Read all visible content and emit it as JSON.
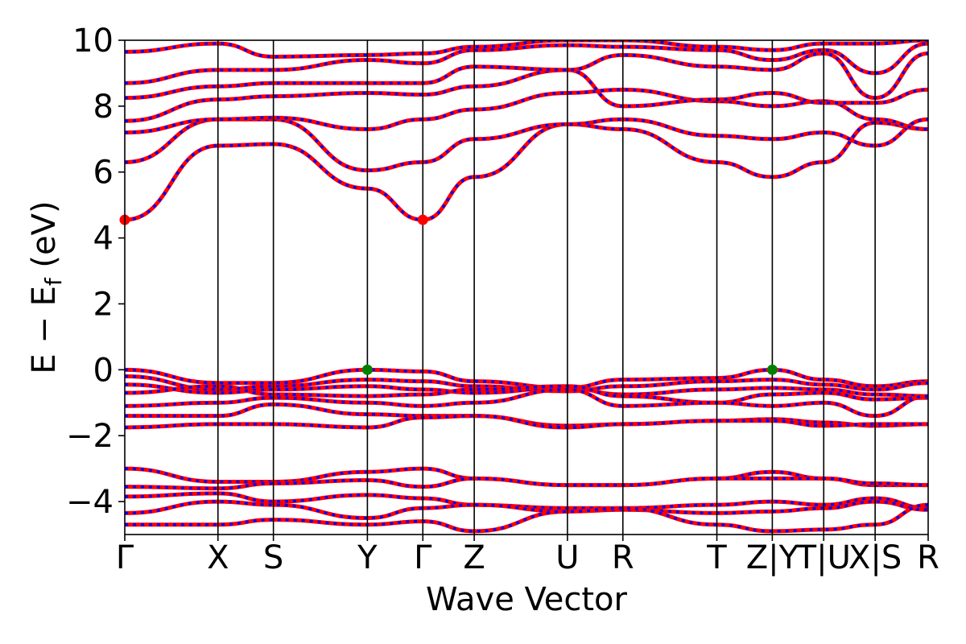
{
  "chart_data": {
    "type": "line",
    "xlabel": "Wave Vector",
    "ylabel": "E − E",
    "ylabel_sub": "f",
    "ylabel_unit": " (eV)",
    "ylim": [
      -5,
      10
    ],
    "yticks": [
      -4,
      -2,
      0,
      2,
      4,
      6,
      8,
      10
    ],
    "ytick_labels": [
      "−4",
      "−2",
      "0",
      "2",
      "4",
      "6",
      "8",
      "10"
    ],
    "xlim": [
      0,
      1
    ],
    "kpoints": [
      {
        "label": "Γ",
        "x": 0.0
      },
      {
        "label": "X",
        "x": 0.116
      },
      {
        "label": "S",
        "x": 0.185
      },
      {
        "label": "Y",
        "x": 0.302
      },
      {
        "label": "Γ",
        "x": 0.371
      },
      {
        "label": "Z",
        "x": 0.435
      },
      {
        "label": "U",
        "x": 0.551
      },
      {
        "label": "R",
        "x": 0.62
      },
      {
        "label": "T",
        "x": 0.737
      },
      {
        "label": "Z|Y",
        "x": 0.806
      },
      {
        "label": "T|U",
        "x": 0.87
      },
      {
        "label": "X|S",
        "x": 0.934
      },
      {
        "label": "R",
        "x": 1.0
      }
    ],
    "grid": false,
    "legend": "none",
    "colors": {
      "spin_up": "#ff0000",
      "spin_down": "#0000ff",
      "cbm_marker": "#ff0000",
      "vbm_marker": "#008000"
    },
    "markers": [
      {
        "kind": "CBM",
        "x": 0.0,
        "y": 4.55
      },
      {
        "kind": "CBM",
        "x": 0.371,
        "y": 4.55
      },
      {
        "kind": "VBM",
        "x": 0.302,
        "y": 0.0
      },
      {
        "kind": "VBM",
        "x": 0.806,
        "y": 0.0
      }
    ],
    "series": [
      {
        "values": [
          4.55,
          6.8,
          6.85,
          5.5,
          4.55,
          5.85,
          7.45,
          7.3,
          6.3,
          5.85,
          6.3,
          7.5,
          7.3
        ]
      },
      {
        "values": [
          6.3,
          7.6,
          7.6,
          6.05,
          6.3,
          7.0,
          7.45,
          7.6,
          7.1,
          7.0,
          7.2,
          6.8,
          7.6
        ]
      },
      {
        "values": [
          7.2,
          7.6,
          7.65,
          7.3,
          7.6,
          7.9,
          8.4,
          8.5,
          8.15,
          8.0,
          8.15,
          7.6,
          7.3
        ]
      },
      {
        "values": [
          7.55,
          8.2,
          8.3,
          8.4,
          8.35,
          8.6,
          9.1,
          8.0,
          8.2,
          8.4,
          8.1,
          8.1,
          8.5
        ]
      },
      {
        "values": [
          8.25,
          8.6,
          8.7,
          8.7,
          8.7,
          9.2,
          9.1,
          9.55,
          9.2,
          9.1,
          9.6,
          8.25,
          9.6
        ]
      },
      {
        "values": [
          8.7,
          9.1,
          9.1,
          9.4,
          9.3,
          9.7,
          9.85,
          9.8,
          9.7,
          9.4,
          9.7,
          9.0,
          9.9
        ]
      },
      {
        "values": [
          9.65,
          9.9,
          9.5,
          9.55,
          9.6,
          9.8,
          10.0,
          10.0,
          9.8,
          9.7,
          9.9,
          9.9,
          10.0
        ]
      },
      {
        "values": [
          0.0,
          -0.4,
          -0.4,
          0.0,
          -0.05,
          -0.35,
          -0.55,
          -0.3,
          -0.25,
          0.0,
          -0.3,
          -0.5,
          -0.35
        ]
      },
      {
        "values": [
          -0.2,
          -0.6,
          -0.5,
          -0.3,
          -0.35,
          -0.5,
          -0.65,
          -0.5,
          -0.35,
          -0.3,
          -0.45,
          -0.6,
          -0.4
        ]
      },
      {
        "values": [
          -0.45,
          -0.7,
          -0.6,
          -0.5,
          -0.6,
          -0.7,
          -0.55,
          -0.75,
          -0.6,
          -0.55,
          -0.6,
          -0.75,
          -0.8
        ]
      },
      {
        "values": [
          -0.7,
          -0.5,
          -0.75,
          -0.8,
          -0.75,
          -0.6,
          -0.5,
          -0.8,
          -1.0,
          -0.75,
          -0.7,
          -0.9,
          -0.85
        ]
      },
      {
        "values": [
          -1.1,
          -1.0,
          -0.85,
          -1.0,
          -1.1,
          -1.0,
          -0.6,
          -1.1,
          -1.0,
          -1.1,
          -1.0,
          -1.4,
          -0.8
        ]
      },
      {
        "values": [
          -1.4,
          -1.4,
          -1.05,
          -1.35,
          -1.4,
          -1.4,
          -1.7,
          -1.65,
          -1.55,
          -1.5,
          -1.6,
          -1.7,
          -1.65
        ]
      },
      {
        "values": [
          -1.75,
          -1.65,
          -1.65,
          -1.75,
          -1.45,
          -1.4,
          -1.75,
          -1.65,
          -1.55,
          -1.55,
          -1.7,
          -1.65,
          -1.65
        ]
      },
      {
        "values": [
          -3.0,
          -3.4,
          -3.4,
          -3.1,
          -3.0,
          -3.3,
          -3.5,
          -3.5,
          -3.3,
          -3.1,
          -3.3,
          -3.5,
          -3.5
        ]
      },
      {
        "values": [
          -3.55,
          -3.6,
          -3.45,
          -3.35,
          -3.55,
          -3.3,
          -3.5,
          -3.5,
          -3.3,
          -3.3,
          -3.3,
          -3.45,
          -3.5
        ]
      },
      {
        "values": [
          -3.85,
          -3.75,
          -4.0,
          -3.8,
          -3.9,
          -4.1,
          -4.2,
          -4.2,
          -4.1,
          -4.0,
          -4.1,
          -3.9,
          -4.2
        ]
      },
      {
        "values": [
          -4.35,
          -4.0,
          -4.1,
          -4.5,
          -4.2,
          -4.1,
          -4.3,
          -4.25,
          -4.35,
          -4.3,
          -4.2,
          -4.0,
          -4.25
        ]
      },
      {
        "values": [
          -4.7,
          -4.7,
          -4.55,
          -4.7,
          -4.6,
          -4.9,
          -4.3,
          -4.2,
          -4.7,
          -4.9,
          -4.85,
          -4.7,
          -4.1
        ]
      }
    ]
  }
}
